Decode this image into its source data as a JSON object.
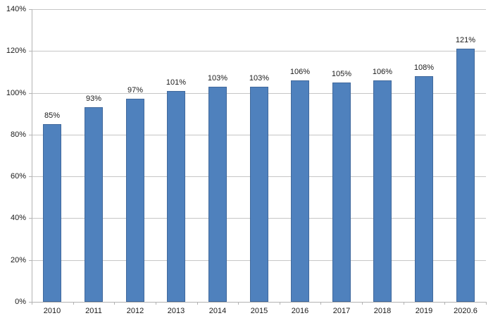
{
  "chart_data": {
    "type": "bar",
    "title": "",
    "xlabel": "",
    "ylabel": "",
    "categories": [
      "2010",
      "2011",
      "2012",
      "2013",
      "2014",
      "2015",
      "2016",
      "2017",
      "2018",
      "2019",
      "2020.6"
    ],
    "values": [
      85,
      93,
      97,
      101,
      103,
      103,
      106,
      105,
      106,
      108,
      121
    ],
    "data_labels": [
      "85%",
      "93%",
      "97%",
      "101%",
      "103%",
      "103%",
      "106%",
      "105%",
      "106%",
      "108%",
      "121%"
    ],
    "ylim": [
      0,
      140
    ],
    "ytick_step": 20,
    "ytick_labels": [
      "0%",
      "20%",
      "40%",
      "60%",
      "80%",
      "100%",
      "120%",
      "140%"
    ],
    "grid": true,
    "legend": false,
    "colors": {
      "bar_fill": "#4f81bd",
      "bar_border": "#41699c",
      "gridline": "#c6c6c6",
      "axis_line": "#b3b3b3",
      "label_text": "#1a1a1a"
    }
  }
}
